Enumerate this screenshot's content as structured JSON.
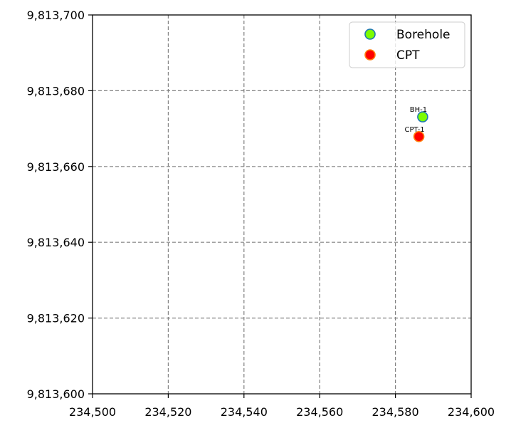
{
  "chart_data": {
    "type": "scatter",
    "title": "",
    "xlabel": "",
    "ylabel": "",
    "xlim": [
      234500,
      234600
    ],
    "ylim": [
      9813600,
      9813700
    ],
    "x_ticks": [
      234500,
      234520,
      234540,
      234560,
      234580,
      234600
    ],
    "y_ticks": [
      9813600,
      9813620,
      9813640,
      9813660,
      9813680,
      9813700
    ],
    "x_tick_labels": [
      "234,500",
      "234,520",
      "234,540",
      "234,560",
      "234,580",
      "234,600"
    ],
    "y_tick_labels": [
      "9,813,600",
      "9,813,620",
      "9,813,640",
      "9,813,660",
      "9,813,680",
      "9,813,700"
    ],
    "grid": true,
    "legend_position": "top-right",
    "series": [
      {
        "name": "Borehole",
        "marker_fill": "#7cfc00",
        "marker_edge": "#1f77b4",
        "points": [
          {
            "x": 234587.2,
            "y": 9813673.1,
            "label": "BH-1"
          }
        ]
      },
      {
        "name": "CPT",
        "marker_fill": "#ff0000",
        "marker_edge": "#ff7f0e",
        "points": [
          {
            "x": 234586.2,
            "y": 9813667.9,
            "label": "CPT-1"
          }
        ]
      }
    ]
  }
}
